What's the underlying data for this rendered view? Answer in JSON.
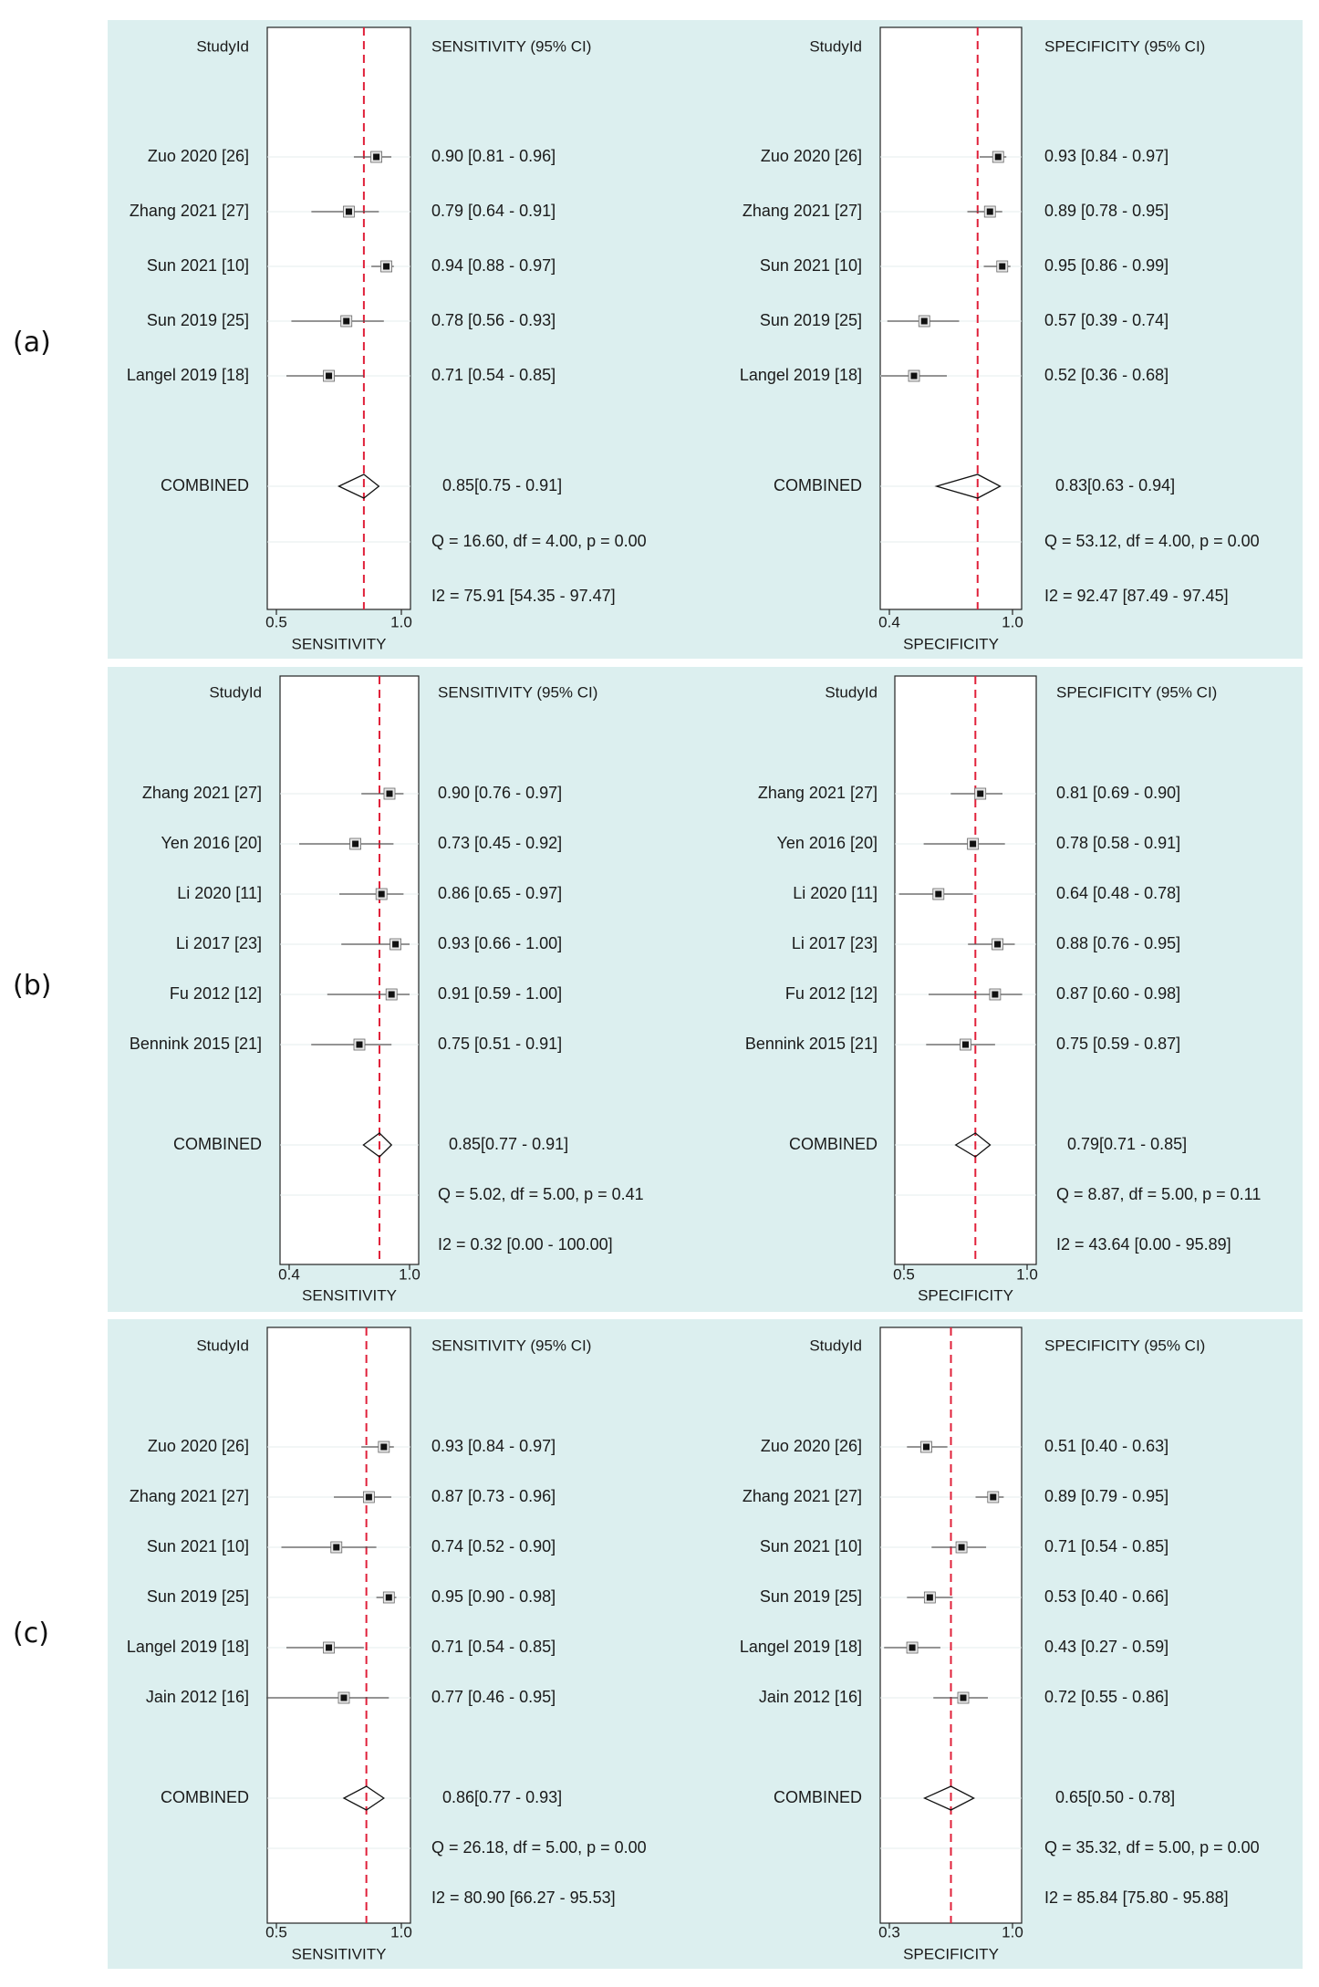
{
  "panels": [
    {
      "label": "(a)"
    },
    {
      "label": "(b)"
    },
    {
      "label": "(c)"
    }
  ],
  "chart_data": [
    {
      "type": "forest",
      "panel": "(a)",
      "header_left": "StudyId",
      "header_right": "SENSITIVITY (95% CI)",
      "xlabel": "SENSITIVITY",
      "xlim": [
        0.5,
        1.0
      ],
      "ticks": [
        "0.5",
        "1.0"
      ],
      "reference_line": 0.85,
      "studies": [
        {
          "name": "Zuo 2020 [26]",
          "est": 0.9,
          "lo": 0.81,
          "hi": 0.96,
          "text": "0.90 [0.81 - 0.96]"
        },
        {
          "name": "Zhang 2021 [27]",
          "est": 0.79,
          "lo": 0.64,
          "hi": 0.91,
          "text": "0.79 [0.64 - 0.91]"
        },
        {
          "name": "Sun 2021 [10]",
          "est": 0.94,
          "lo": 0.88,
          "hi": 0.97,
          "text": "0.94 [0.88 - 0.97]"
        },
        {
          "name": "Sun 2019 [25]",
          "est": 0.78,
          "lo": 0.56,
          "hi": 0.93,
          "text": "0.78 [0.56 - 0.93]"
        },
        {
          "name": "Langel 2019 [18]",
          "est": 0.71,
          "lo": 0.54,
          "hi": 0.85,
          "text": "0.71 [0.54 - 0.85]"
        }
      ],
      "combined": {
        "name": "COMBINED",
        "est": 0.85,
        "lo": 0.75,
        "hi": 0.91,
        "text": "0.85[0.75 - 0.91]"
      },
      "q_text": "Q = 16.60, df = 4.00, p =  0.00",
      "i2_text": "I2 = 75.91 [54.35 - 97.47]"
    },
    {
      "type": "forest",
      "panel": "(a)",
      "header_left": "StudyId",
      "header_right": "SPECIFICITY (95% CI)",
      "xlabel": "SPECIFICITY",
      "xlim": [
        0.4,
        1.0
      ],
      "ticks": [
        "0.4",
        "1.0"
      ],
      "reference_line": 0.83,
      "studies": [
        {
          "name": "Zuo 2020 [26]",
          "est": 0.93,
          "lo": 0.84,
          "hi": 0.97,
          "text": "0.93 [0.84 - 0.97]"
        },
        {
          "name": "Zhang 2021 [27]",
          "est": 0.89,
          "lo": 0.78,
          "hi": 0.95,
          "text": "0.89 [0.78 - 0.95]"
        },
        {
          "name": "Sun 2021 [10]",
          "est": 0.95,
          "lo": 0.86,
          "hi": 0.99,
          "text": "0.95 [0.86 - 0.99]"
        },
        {
          "name": "Sun 2019 [25]",
          "est": 0.57,
          "lo": 0.39,
          "hi": 0.74,
          "text": "0.57 [0.39 - 0.74]"
        },
        {
          "name": "Langel 2019 [18]",
          "est": 0.52,
          "lo": 0.36,
          "hi": 0.68,
          "text": "0.52 [0.36 - 0.68]"
        }
      ],
      "combined": {
        "name": "COMBINED",
        "est": 0.83,
        "lo": 0.63,
        "hi": 0.94,
        "text": "0.83[0.63 - 0.94]"
      },
      "q_text": "Q = 53.12, df = 4.00, p =  0.00",
      "i2_text": "I2 = 92.47 [87.49 - 97.45]"
    },
    {
      "type": "forest",
      "panel": "(b)",
      "header_left": "StudyId",
      "header_right": "SENSITIVITY (95% CI)",
      "xlabel": "SENSITIVITY",
      "xlim": [
        0.4,
        1.0
      ],
      "ticks": [
        "0.4",
        "1.0"
      ],
      "reference_line": 0.85,
      "studies": [
        {
          "name": "Zhang 2021 [27]",
          "est": 0.9,
          "lo": 0.76,
          "hi": 0.97,
          "text": "0.90 [0.76 - 0.97]"
        },
        {
          "name": "Yen 2016 [20]",
          "est": 0.73,
          "lo": 0.45,
          "hi": 0.92,
          "text": "0.73 [0.45 - 0.92]"
        },
        {
          "name": "Li 2020 [11]",
          "est": 0.86,
          "lo": 0.65,
          "hi": 0.97,
          "text": "0.86 [0.65 - 0.97]"
        },
        {
          "name": "Li 2017 [23]",
          "est": 0.93,
          "lo": 0.66,
          "hi": 1.0,
          "text": "0.93 [0.66 - 1.00]"
        },
        {
          "name": "Fu 2012 [12]",
          "est": 0.91,
          "lo": 0.59,
          "hi": 1.0,
          "text": "0.91 [0.59 - 1.00]"
        },
        {
          "name": "Bennink 2015 [21]",
          "est": 0.75,
          "lo": 0.51,
          "hi": 0.91,
          "text": "0.75 [0.51 - 0.91]"
        }
      ],
      "combined": {
        "name": "COMBINED",
        "est": 0.85,
        "lo": 0.77,
        "hi": 0.91,
        "text": "0.85[0.77 - 0.91]"
      },
      "q_text": "Q =  5.02, df = 5.00, p =  0.41",
      "i2_text": "I2 = 0.32 [0.00 - 100.00]"
    },
    {
      "type": "forest",
      "panel": "(b)",
      "header_left": "StudyId",
      "header_right": "SPECIFICITY (95% CI)",
      "xlabel": "SPECIFICITY",
      "xlim": [
        0.5,
        1.0
      ],
      "ticks": [
        "0.5",
        "1.0"
      ],
      "reference_line": 0.79,
      "studies": [
        {
          "name": "Zhang 2021 [27]",
          "est": 0.81,
          "lo": 0.69,
          "hi": 0.9,
          "text": "0.81 [0.69 - 0.90]"
        },
        {
          "name": "Yen 2016 [20]",
          "est": 0.78,
          "lo": 0.58,
          "hi": 0.91,
          "text": "0.78 [0.58 - 0.91]"
        },
        {
          "name": "Li 2020 [11]",
          "est": 0.64,
          "lo": 0.48,
          "hi": 0.78,
          "text": "0.64 [0.48 - 0.78]"
        },
        {
          "name": "Li 2017 [23]",
          "est": 0.88,
          "lo": 0.76,
          "hi": 0.95,
          "text": "0.88 [0.76 - 0.95]"
        },
        {
          "name": "Fu 2012 [12]",
          "est": 0.87,
          "lo": 0.6,
          "hi": 0.98,
          "text": "0.87 [0.60 - 0.98]"
        },
        {
          "name": "Bennink 2015 [21]",
          "est": 0.75,
          "lo": 0.59,
          "hi": 0.87,
          "text": "0.75 [0.59 - 0.87]"
        }
      ],
      "combined": {
        "name": "COMBINED",
        "est": 0.79,
        "lo": 0.71,
        "hi": 0.85,
        "text": "0.79[0.71 - 0.85]"
      },
      "q_text": "Q =  8.87, df = 5.00, p =  0.11",
      "i2_text": "I2 = 43.64 [0.00 - 95.89]"
    },
    {
      "type": "forest",
      "panel": "(c)",
      "header_left": "StudyId",
      "header_right": "SENSITIVITY (95% CI)",
      "xlabel": "SENSITIVITY",
      "xlim": [
        0.5,
        1.0
      ],
      "ticks": [
        "0.5",
        "1.0"
      ],
      "reference_line": 0.86,
      "studies": [
        {
          "name": "Zuo 2020 [26]",
          "est": 0.93,
          "lo": 0.84,
          "hi": 0.97,
          "text": "0.93 [0.84 - 0.97]"
        },
        {
          "name": "Zhang 2021 [27]",
          "est": 0.87,
          "lo": 0.73,
          "hi": 0.96,
          "text": "0.87 [0.73 - 0.96]"
        },
        {
          "name": "Sun 2021 [10]",
          "est": 0.74,
          "lo": 0.52,
          "hi": 0.9,
          "text": "0.74 [0.52 - 0.90]"
        },
        {
          "name": "Sun 2019 [25]",
          "est": 0.95,
          "lo": 0.9,
          "hi": 0.98,
          "text": "0.95 [0.90 - 0.98]"
        },
        {
          "name": "Langel 2019 [18]",
          "est": 0.71,
          "lo": 0.54,
          "hi": 0.85,
          "text": "0.71 [0.54 - 0.85]"
        },
        {
          "name": "Jain 2012 [16]",
          "est": 0.77,
          "lo": 0.46,
          "hi": 0.95,
          "text": "0.77 [0.46 - 0.95]"
        }
      ],
      "combined": {
        "name": "COMBINED",
        "est": 0.86,
        "lo": 0.77,
        "hi": 0.93,
        "text": "0.86[0.77 - 0.93]"
      },
      "q_text": "Q = 26.18, df = 5.00, p =  0.00",
      "i2_text": "I2 = 80.90 [66.27 - 95.53]"
    },
    {
      "type": "forest",
      "panel": "(c)",
      "header_left": "StudyId",
      "header_right": "SPECIFICITY (95% CI)",
      "xlabel": "SPECIFICITY",
      "xlim": [
        0.3,
        1.0
      ],
      "ticks": [
        "0.3",
        "1.0"
      ],
      "reference_line": 0.65,
      "studies": [
        {
          "name": "Zuo 2020 [26]",
          "est": 0.51,
          "lo": 0.4,
          "hi": 0.63,
          "text": "0.51 [0.40 - 0.63]"
        },
        {
          "name": "Zhang 2021 [27]",
          "est": 0.89,
          "lo": 0.79,
          "hi": 0.95,
          "text": "0.89 [0.79 - 0.95]"
        },
        {
          "name": "Sun 2021 [10]",
          "est": 0.71,
          "lo": 0.54,
          "hi": 0.85,
          "text": "0.71 [0.54 - 0.85]"
        },
        {
          "name": "Sun 2019 [25]",
          "est": 0.53,
          "lo": 0.4,
          "hi": 0.66,
          "text": "0.53 [0.40 - 0.66]"
        },
        {
          "name": "Langel 2019 [18]",
          "est": 0.43,
          "lo": 0.27,
          "hi": 0.59,
          "text": "0.43 [0.27 - 0.59]"
        },
        {
          "name": "Jain 2012 [16]",
          "est": 0.72,
          "lo": 0.55,
          "hi": 0.86,
          "text": "0.72 [0.55 - 0.86]"
        }
      ],
      "combined": {
        "name": "COMBINED",
        "est": 0.65,
        "lo": 0.5,
        "hi": 0.78,
        "text": "0.65[0.50 - 0.78]"
      },
      "q_text": "Q = 35.32, df = 5.00, p =  0.00",
      "i2_text": "I2 = 85.84 [75.80 - 95.88]"
    }
  ],
  "colors": {
    "panel_bg": "#dcefef",
    "plot_bg": "#ffffff",
    "reference_line": "#e0213a",
    "ci_line": "#555555",
    "marker": "#111111"
  }
}
